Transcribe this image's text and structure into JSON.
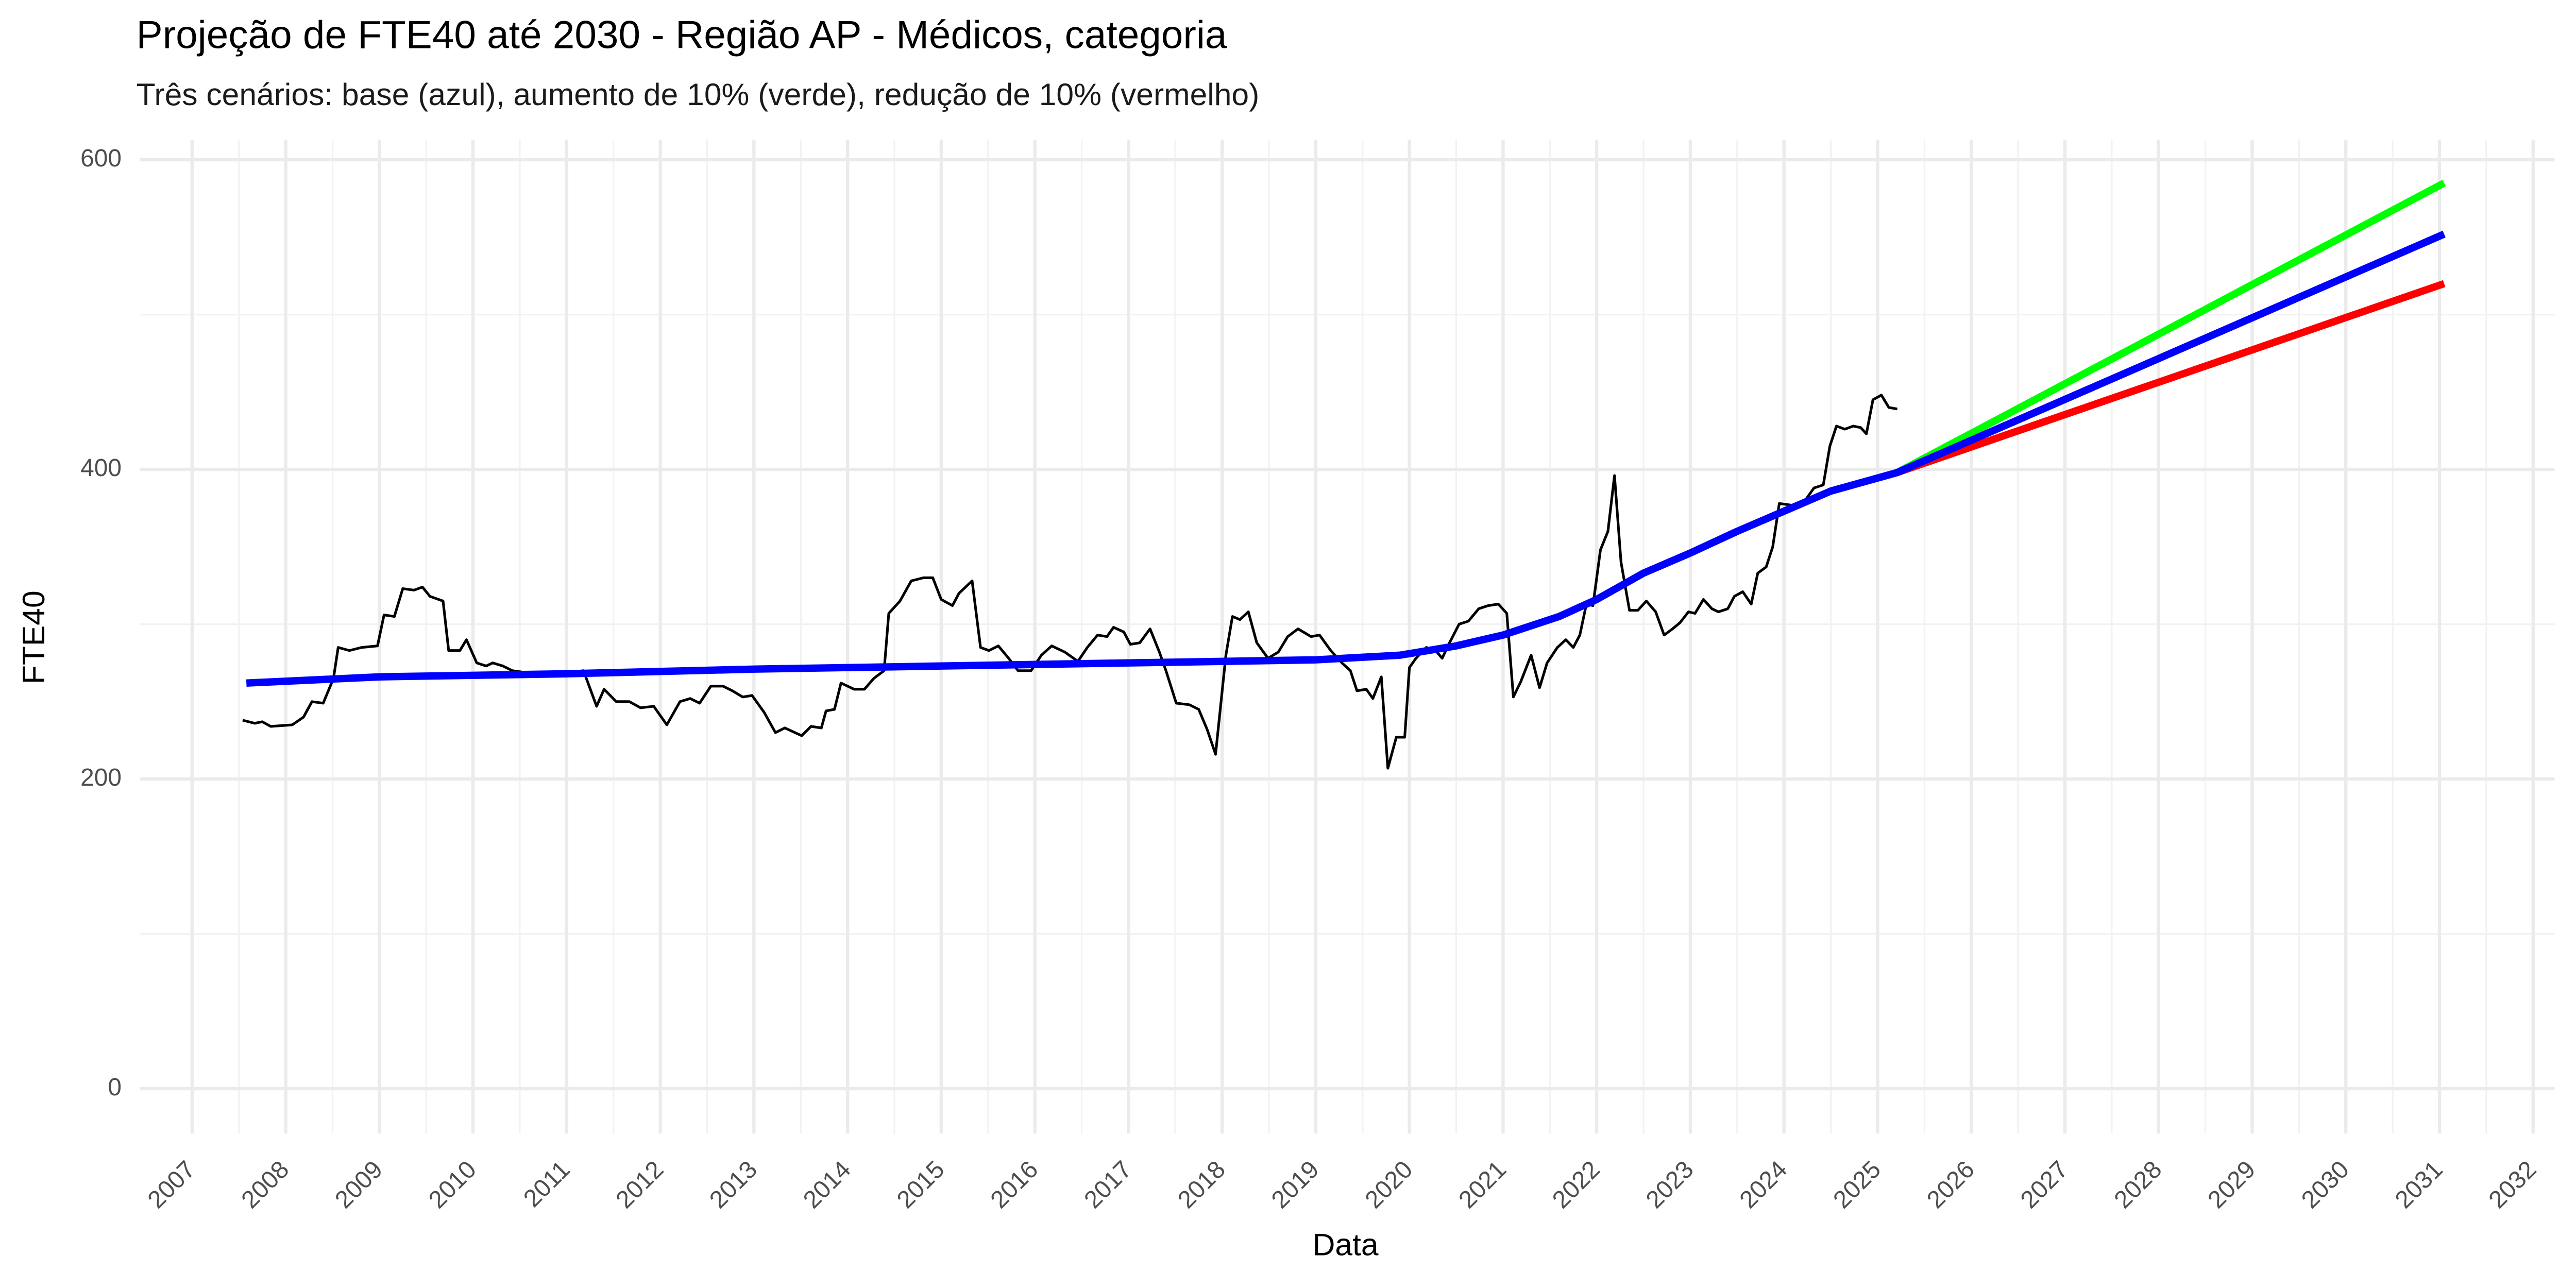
{
  "chart_data": {
    "type": "line",
    "title": "Projeção de FTE40 até 2030 - Região AP - Médicos, categoria",
    "subtitle": "Três cenários: base (azul), aumento de 10% (verde), redução de 10% (vermelho)",
    "x_label": "Data",
    "y_label": "FTE40",
    "xlim": [
      2006.44,
      2032.23
    ],
    "xticks": [
      2007,
      2008,
      2009,
      2010,
      2011,
      2012,
      2013,
      2014,
      2015,
      2016,
      2017,
      2018,
      2019,
      2020,
      2021,
      2022,
      2023,
      2024,
      2025,
      2026,
      2027,
      2028,
      2029,
      2030,
      2031,
      2032
    ],
    "ylim": [
      -29,
      613
    ],
    "yticks": [
      0,
      200,
      400,
      600
    ],
    "grid": true,
    "series": [
      {
        "color": "#000000",
        "width": 1.6,
        "x": [
          2007.54,
          2007.67,
          2007.75,
          2007.84,
          2008.07,
          2008.19,
          2008.28,
          2008.4,
          2008.51,
          2008.56,
          2008.68,
          2008.81,
          2008.98,
          2009.05,
          2009.16,
          2009.25,
          2009.37,
          2009.46,
          2009.54,
          2009.68,
          2009.74,
          2009.86,
          2009.93,
          2010.04,
          2010.14,
          2010.21,
          2010.32,
          2010.42,
          2010.65,
          2010.91,
          2011.18,
          2011.32,
          2011.4,
          2011.53,
          2011.67,
          2011.79,
          2011.93,
          2012.07,
          2012.21,
          2012.32,
          2012.42,
          2012.54,
          2012.67,
          2012.77,
          2012.88,
          2012.98,
          2013.11,
          2013.23,
          2013.33,
          2013.51,
          2013.61,
          2013.72,
          2013.77,
          2013.86,
          2013.93,
          2014.07,
          2014.18,
          2014.28,
          2014.39,
          2014.44,
          2014.56,
          2014.68,
          2014.81,
          2014.91,
          2015.0,
          2015.12,
          2015.19,
          2015.33,
          2015.42,
          2015.51,
          2015.61,
          2015.72,
          2015.82,
          2015.96,
          2016.07,
          2016.18,
          2016.32,
          2016.46,
          2016.56,
          2016.67,
          2016.77,
          2016.84,
          2016.95,
          2017.02,
          2017.12,
          2017.23,
          2017.33,
          2017.4,
          2017.51,
          2017.65,
          2017.75,
          2017.84,
          2017.93,
          2018.04,
          2018.11,
          2018.19,
          2018.28,
          2018.37,
          2018.49,
          2018.6,
          2018.7,
          2018.81,
          2018.95,
          2019.04,
          2019.16,
          2019.28,
          2019.37,
          2019.44,
          2019.54,
          2019.61,
          2019.7,
          2019.77,
          2019.86,
          2019.95,
          2020.0,
          2020.07,
          2020.18,
          2020.28,
          2020.35,
          2020.42,
          2020.53,
          2020.63,
          2020.74,
          2020.84,
          2020.95,
          2021.04,
          2021.11,
          2021.19,
          2021.3,
          2021.39,
          2021.47,
          2021.58,
          2021.67,
          2021.75,
          2021.82,
          2021.89,
          2021.96,
          2022.04,
          2022.12,
          2022.19,
          2022.26,
          2022.35,
          2022.44,
          2022.53,
          2022.63,
          2022.72,
          2022.81,
          2022.89,
          2022.98,
          2023.05,
          2023.14,
          2023.23,
          2023.3,
          2023.4,
          2023.47,
          2023.56,
          2023.65,
          2023.72,
          2023.81,
          2023.88,
          2023.95,
          2024.07,
          2024.18,
          2024.25,
          2024.32,
          2024.42,
          2024.49,
          2024.56,
          2024.65,
          2024.74,
          2024.82,
          2024.88,
          2024.95,
          2025.04,
          2025.12,
          2025.21
        ],
        "values": [
          238,
          236,
          237,
          234,
          235,
          240,
          250,
          249,
          265,
          285,
          283,
          285,
          286,
          306,
          305,
          323,
          322,
          324,
          318,
          315,
          283,
          283,
          290,
          275,
          273,
          275,
          273,
          270,
          268,
          268,
          270,
          247,
          258,
          250,
          250,
          246,
          247,
          235,
          250,
          252,
          249,
          260,
          260,
          257,
          253,
          254,
          243,
          230,
          233,
          228,
          234,
          233,
          244,
          245,
          262,
          258,
          258,
          265,
          270,
          307,
          315,
          328,
          330,
          330,
          316,
          312,
          320,
          328,
          285,
          283,
          286,
          278,
          270,
          270,
          280,
          286,
          282,
          276,
          285,
          293,
          292,
          298,
          295,
          287,
          288,
          297,
          282,
          270,
          249,
          248,
          245,
          232,
          216,
          280,
          305,
          303,
          308,
          288,
          278,
          282,
          292,
          297,
          292,
          293,
          283,
          275,
          270,
          257,
          258,
          252,
          266,
          207,
          227,
          227,
          272,
          278,
          285,
          283,
          278,
          287,
          300,
          302,
          310,
          312,
          313,
          307,
          253,
          263,
          280,
          259,
          275,
          285,
          290,
          285,
          293,
          313,
          312,
          348,
          360,
          396,
          340,
          309,
          309,
          315,
          308,
          293,
          297,
          301,
          308,
          307,
          316,
          310,
          308,
          310,
          318,
          321,
          313,
          333,
          337,
          350,
          378,
          377,
          376,
          382,
          388,
          390,
          415,
          428,
          426,
          428,
          427,
          423,
          445,
          448,
          440,
          439
        ]
      },
      {
        "color": "#00ff00",
        "width": 4.5,
        "x": [
          2025.21,
          2031.05
        ],
        "values": [
          398,
          585
        ]
      },
      {
        "color": "#ff0000",
        "width": 4.5,
        "x": [
          2025.21,
          2031.05
        ],
        "values": [
          398,
          520
        ]
      },
      {
        "color": "#0000ff",
        "width": 4.5,
        "x": [
          2007.58,
          2009,
          2011,
          2013,
          2015,
          2017,
          2019,
          2019.9,
          2020.5,
          2021,
          2021.6,
          2022,
          2022.5,
          2023,
          2023.5,
          2024,
          2024.5,
          2025.21,
          2031.05
        ],
        "values": [
          262,
          266,
          268,
          271,
          273,
          275,
          277,
          280,
          286,
          293,
          305,
          316,
          333,
          346,
          360,
          373,
          386,
          398,
          552
        ]
      }
    ]
  }
}
